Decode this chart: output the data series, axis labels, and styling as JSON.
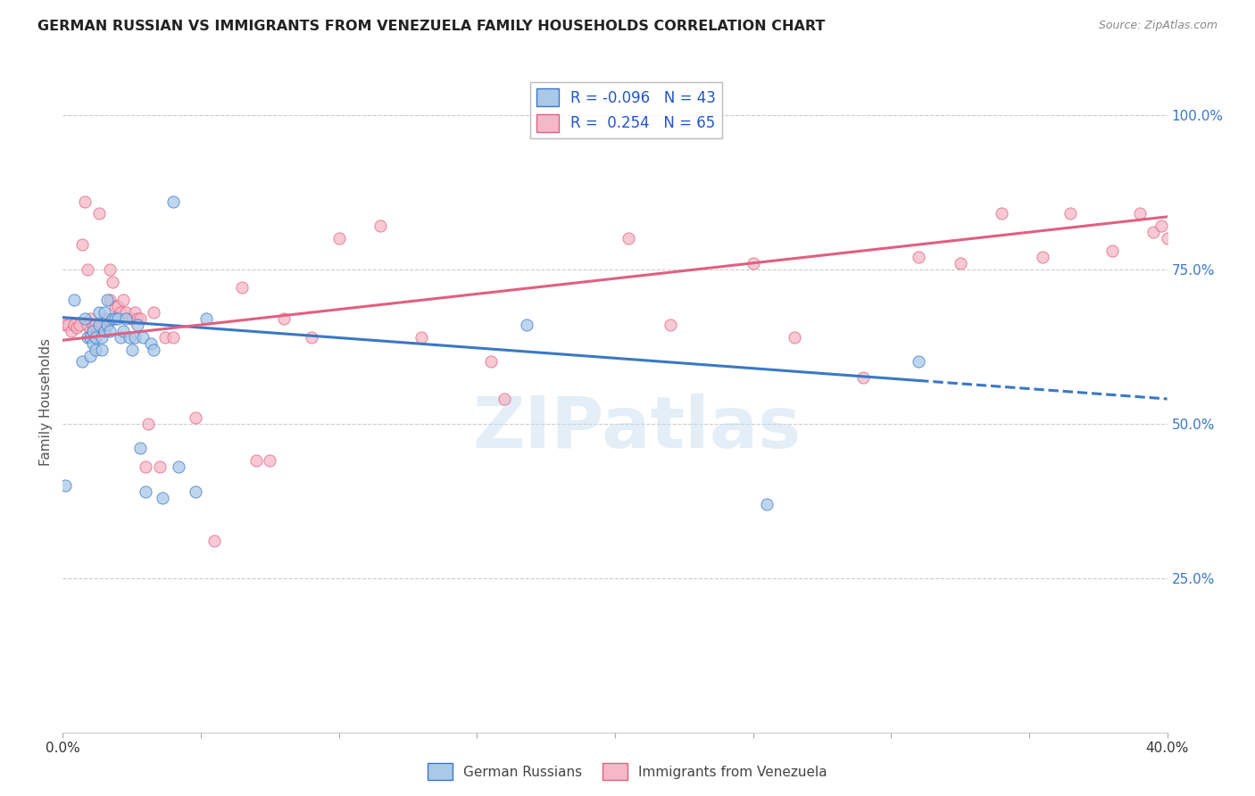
{
  "title": "GERMAN RUSSIAN VS IMMIGRANTS FROM VENEZUELA FAMILY HOUSEHOLDS CORRELATION CHART",
  "source": "Source: ZipAtlas.com",
  "ylabel": "Family Households",
  "yticks": [
    "100.0%",
    "75.0%",
    "50.0%",
    "25.0%"
  ],
  "ytick_values": [
    1.0,
    0.75,
    0.5,
    0.25
  ],
  "xlim": [
    0.0,
    0.4
  ],
  "ylim": [
    0.0,
    1.07
  ],
  "scatter_color_blue": "#aac8e8",
  "scatter_color_pink": "#f4b8c8",
  "line_color_blue": "#3b78c4",
  "line_color_pink": "#e06080",
  "legend_color1": "#aac8e8",
  "legend_color2": "#f4b8c8",
  "legend_label1": "R = -0.096   N = 43",
  "legend_label2": "R =  0.254   N = 65",
  "watermark": "ZIPatlas",
  "background_color": "#ffffff",
  "grid_color": "#cccccc",
  "blue_points_x": [
    0.001,
    0.004,
    0.007,
    0.008,
    0.009,
    0.01,
    0.01,
    0.011,
    0.011,
    0.012,
    0.012,
    0.013,
    0.013,
    0.014,
    0.014,
    0.015,
    0.015,
    0.016,
    0.016,
    0.017,
    0.018,
    0.019,
    0.02,
    0.021,
    0.022,
    0.023,
    0.024,
    0.025,
    0.026,
    0.027,
    0.028,
    0.029,
    0.03,
    0.032,
    0.033,
    0.036,
    0.04,
    0.042,
    0.048,
    0.052,
    0.168,
    0.255,
    0.31
  ],
  "blue_points_y": [
    0.4,
    0.7,
    0.6,
    0.67,
    0.64,
    0.61,
    0.64,
    0.65,
    0.63,
    0.62,
    0.64,
    0.68,
    0.66,
    0.62,
    0.64,
    0.68,
    0.65,
    0.7,
    0.66,
    0.65,
    0.67,
    0.67,
    0.67,
    0.64,
    0.65,
    0.67,
    0.64,
    0.62,
    0.64,
    0.66,
    0.46,
    0.64,
    0.39,
    0.63,
    0.62,
    0.38,
    0.86,
    0.43,
    0.39,
    0.67,
    0.66,
    0.37,
    0.6
  ],
  "pink_points_x": [
    0.001,
    0.002,
    0.003,
    0.004,
    0.005,
    0.006,
    0.007,
    0.008,
    0.009,
    0.009,
    0.01,
    0.01,
    0.011,
    0.012,
    0.013,
    0.014,
    0.015,
    0.015,
    0.016,
    0.017,
    0.017,
    0.018,
    0.019,
    0.02,
    0.021,
    0.022,
    0.023,
    0.025,
    0.025,
    0.026,
    0.027,
    0.028,
    0.03,
    0.031,
    0.033,
    0.035,
    0.037,
    0.04,
    0.048,
    0.055,
    0.065,
    0.07,
    0.075,
    0.08,
    0.09,
    0.1,
    0.115,
    0.13,
    0.155,
    0.16,
    0.205,
    0.22,
    0.25,
    0.265,
    0.29,
    0.31,
    0.325,
    0.34,
    0.355,
    0.365,
    0.38,
    0.39,
    0.395,
    0.398,
    0.4
  ],
  "pink_points_y": [
    0.66,
    0.66,
    0.65,
    0.66,
    0.655,
    0.66,
    0.79,
    0.86,
    0.66,
    0.75,
    0.65,
    0.67,
    0.66,
    0.66,
    0.84,
    0.66,
    0.66,
    0.67,
    0.67,
    0.7,
    0.75,
    0.73,
    0.69,
    0.69,
    0.68,
    0.7,
    0.68,
    0.67,
    0.67,
    0.68,
    0.67,
    0.67,
    0.43,
    0.5,
    0.68,
    0.43,
    0.64,
    0.64,
    0.51,
    0.31,
    0.72,
    0.44,
    0.44,
    0.67,
    0.64,
    0.8,
    0.82,
    0.64,
    0.6,
    0.54,
    0.8,
    0.66,
    0.76,
    0.64,
    0.575,
    0.77,
    0.76,
    0.84,
    0.77,
    0.84,
    0.78,
    0.84,
    0.81,
    0.82,
    0.8
  ],
  "blue_line_x0": 0.0,
  "blue_line_y0": 0.672,
  "blue_line_x1": 0.4,
  "blue_line_y1": 0.54,
  "pink_line_x0": 0.0,
  "pink_line_y0": 0.635,
  "pink_line_x1": 0.4,
  "pink_line_y1": 0.835
}
